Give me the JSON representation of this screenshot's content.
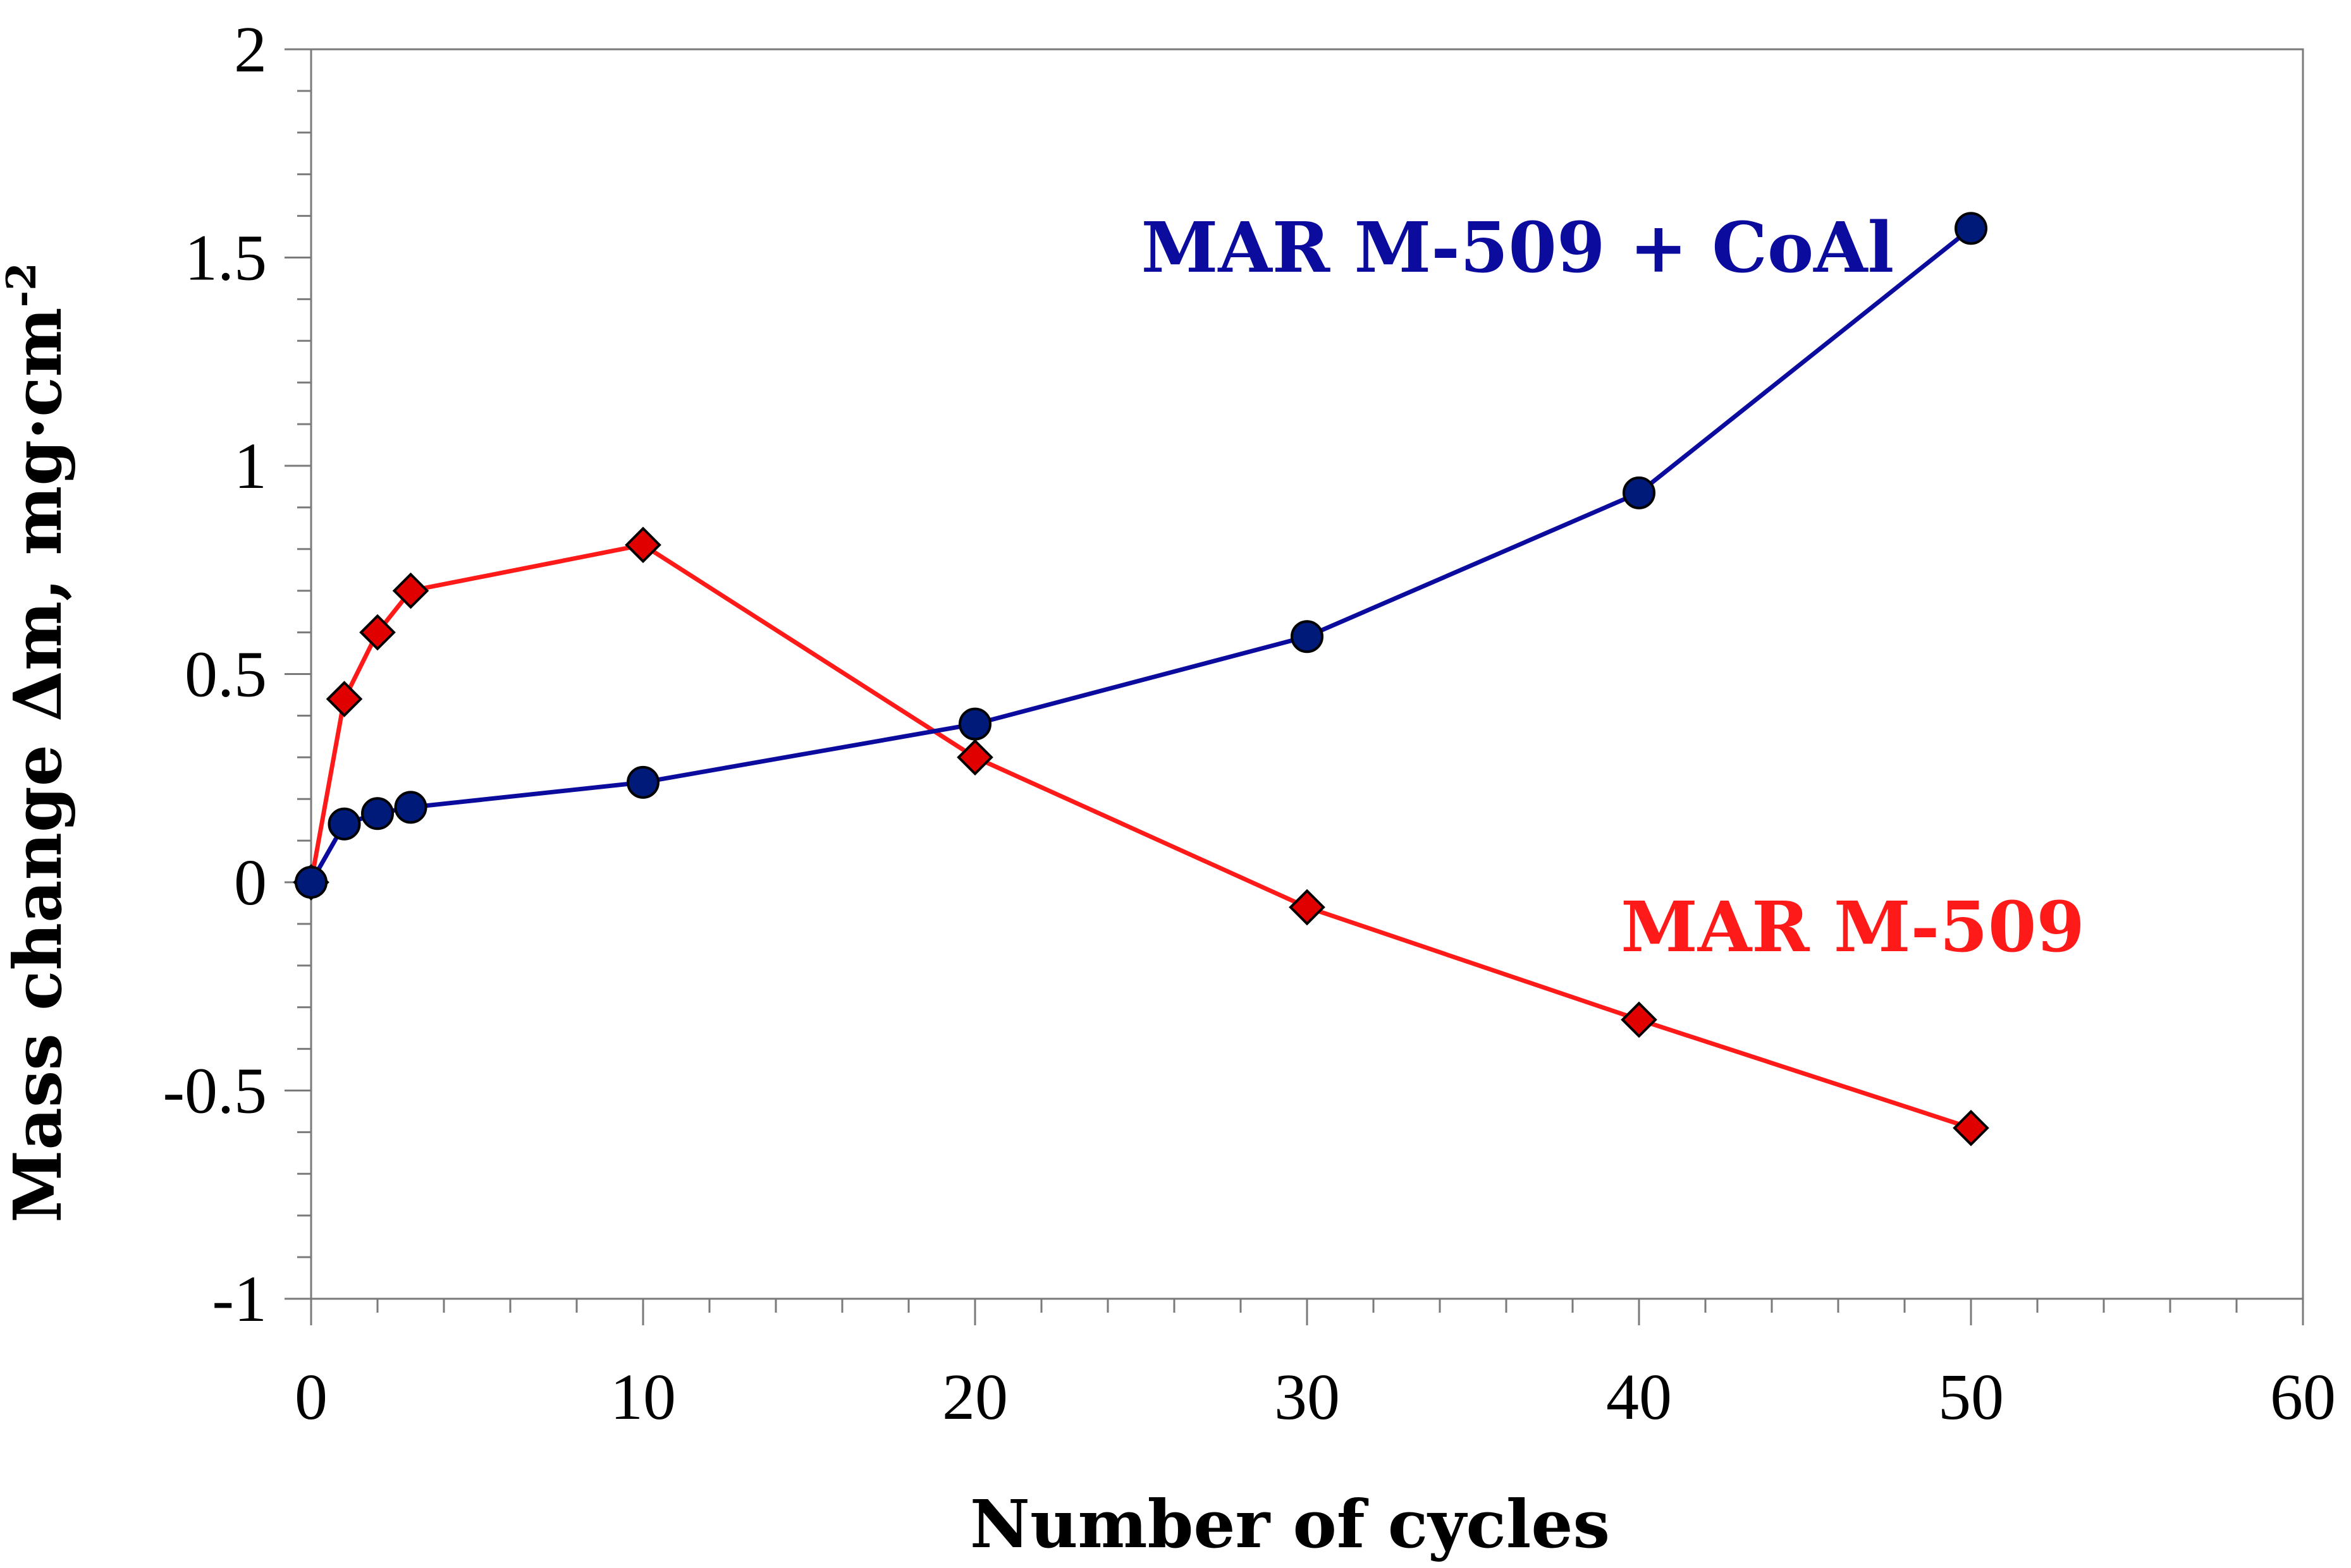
{
  "chart_data": {
    "type": "line",
    "title": "",
    "xlabel": "Number of cycles",
    "ylabel_main": "Mass change Δm, mg·cm",
    "ylabel_sup": "-2",
    "xlim": [
      0,
      60
    ],
    "ylim": [
      -1,
      2
    ],
    "x_ticks": [
      0,
      10,
      20,
      30,
      40,
      50,
      60
    ],
    "x_tick_labels": [
      "0",
      "10",
      "20",
      "30",
      "40",
      "50",
      "60"
    ],
    "x_minor_step": 2,
    "y_ticks": [
      -1,
      -0.5,
      0,
      0.5,
      1,
      1.5,
      2
    ],
    "y_tick_labels": [
      "-1",
      "-0.5",
      "0",
      "0.5",
      "1",
      "1.5",
      "2"
    ],
    "y_minor_step": 0.1,
    "grid": false,
    "legend": "none (direct labels)",
    "series": [
      {
        "name": "MAR M-509 + CoAl",
        "color": "#0b0b9e",
        "marker": "circle",
        "marker_color": "#001a7a",
        "x": [
          0,
          1,
          2,
          3,
          10,
          20,
          30,
          40,
          50
        ],
        "values": [
          0.0,
          0.14,
          0.165,
          0.18,
          0.24,
          0.38,
          0.59,
          0.935,
          1.57
        ]
      },
      {
        "name": "MAR M-509",
        "color": "#ff1a1a",
        "marker": "diamond",
        "marker_color": "#e00000",
        "x": [
          0,
          1,
          2,
          3,
          10,
          20,
          30,
          40,
          50
        ],
        "values": [
          0.0,
          0.44,
          0.6,
          0.7,
          0.81,
          0.3,
          -0.06,
          -0.33,
          -0.59
        ]
      }
    ]
  }
}
